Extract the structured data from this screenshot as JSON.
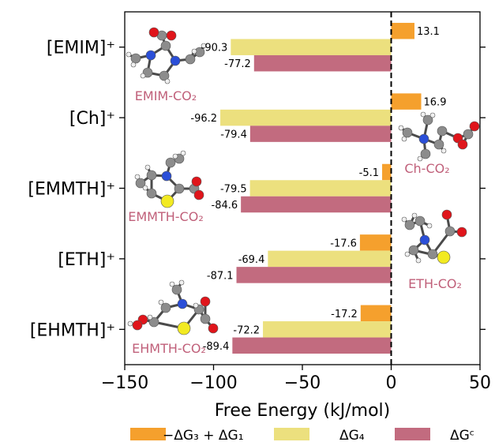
{
  "chart_data": {
    "type": "bar",
    "orientation": "horizontal",
    "categories": [
      "[EMIM]⁺",
      "[Ch]⁺",
      "[EMMTH]⁺",
      "[ETH]⁺",
      "[EHMTH]⁺"
    ],
    "series": [
      {
        "name": "−ΔG₃ + ΔG₁",
        "color": "#f5a02d",
        "values": [
          13.1,
          16.9,
          -5.1,
          -17.6,
          -17.2
        ],
        "labels": [
          "13.1",
          "16.9",
          "-5.1",
          "-17.6",
          "-17.2"
        ]
      },
      {
        "name": "ΔG₄",
        "color": "#ece07e",
        "values": [
          -90.3,
          -96.2,
          -79.5,
          -69.4,
          -72.2
        ],
        "labels": [
          "-90.3",
          "-96.2",
          "-79.5",
          "-69.4",
          "-72.2"
        ]
      },
      {
        "name": "ΔGᶜ",
        "color": "#c26b7f",
        "values": [
          -77.2,
          -79.4,
          -84.6,
          -87.1,
          -89.4
        ],
        "labels": [
          "-77.2",
          "-79.4",
          "-84.6",
          "-87.1",
          "-89.4"
        ]
      }
    ],
    "xlabel": "Free Energy (kJ/mol)",
    "xlim": [
      -150,
      50
    ],
    "xticks": [
      -150,
      -100,
      -50,
      0,
      50
    ],
    "xtick_labels": [
      "−150",
      "−100",
      "−50",
      "0",
      "50"
    ],
    "zero_line": "dashed",
    "grid": false,
    "legend_position": "bottom",
    "annotations": [
      "EMIM-CO₂",
      "Ch-CO₂",
      "EMMTH-CO₂",
      "ETH-CO₂",
      "EHMTH-CO₂"
    ],
    "annotation_color": "#c0607a"
  }
}
